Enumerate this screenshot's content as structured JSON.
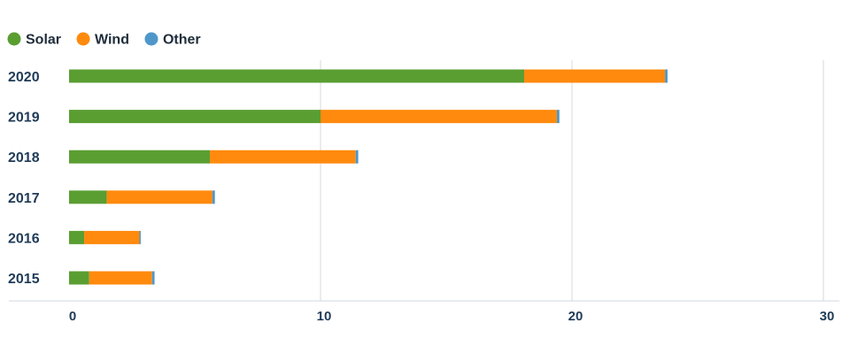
{
  "chart_data": {
    "type": "bar",
    "orientation": "horizontal",
    "stacked": true,
    "categories": [
      "2020",
      "2019",
      "2018",
      "2017",
      "2016",
      "2015"
    ],
    "series": [
      {
        "name": "Solar",
        "color": "#5a9e32",
        "values": [
          18.1,
          10.0,
          5.6,
          1.5,
          0.6,
          0.8
        ]
      },
      {
        "name": "Wind",
        "color": "#ff8a0d",
        "values": [
          5.6,
          9.4,
          5.8,
          4.2,
          2.2,
          2.5
        ]
      },
      {
        "name": "Other",
        "color": "#4f97c9",
        "values": [
          0.1,
          0.1,
          0.1,
          0.1,
          0.05,
          0.1
        ]
      }
    ],
    "xlim": [
      0,
      30
    ],
    "xticks": [
      "0",
      "10",
      "20",
      "30"
    ],
    "grid": true,
    "legend_position": "top-left",
    "title": "",
    "xlabel": "",
    "ylabel": ""
  }
}
